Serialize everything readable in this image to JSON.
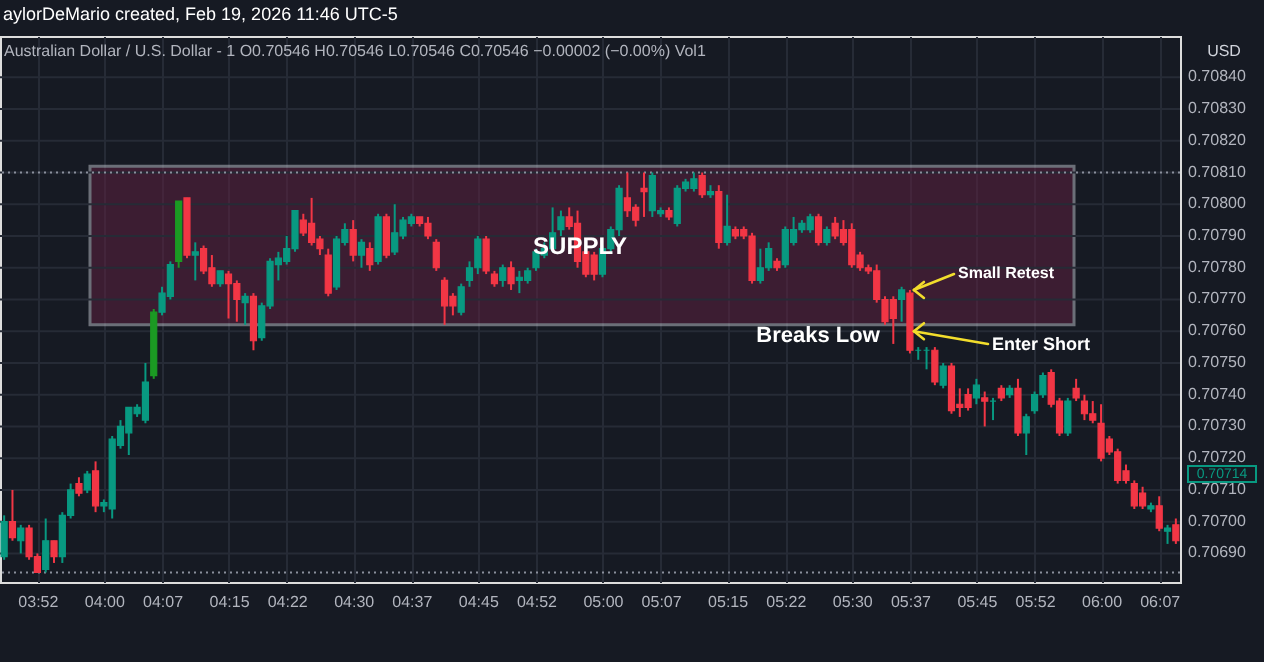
{
  "chart_data": {
    "type": "candlestick",
    "title": "aylorDeMario created, Feb 19, 2026 11:46 UTC-5",
    "subtitle": "Australian Dollar / U.S. Dollar - 1  O0.70546 H0.70546 L0.70546 C0.70546 −0.00002 (−0.00%) Vol1",
    "categories": [
      null,
      null,
      null,
      null,
      "03:52",
      null,
      null,
      null,
      null,
      null,
      null,
      null,
      "04:00",
      null,
      null,
      null,
      null,
      null,
      null,
      "04:07",
      null,
      null,
      null,
      null,
      null,
      null,
      null,
      "04:15",
      null,
      null,
      null,
      null,
      null,
      null,
      "04:22",
      null,
      null,
      null,
      null,
      null,
      null,
      null,
      "04:30",
      null,
      null,
      null,
      null,
      null,
      null,
      "04:37",
      null,
      null,
      null,
      null,
      null,
      null,
      null,
      "04:45",
      null,
      null,
      null,
      null,
      null,
      null,
      "04:52",
      null,
      null,
      null,
      null,
      null,
      null,
      null,
      "05:00",
      null,
      null,
      null,
      null,
      null,
      null,
      "05:07",
      null,
      null,
      null,
      null,
      null,
      null,
      null,
      "05:15",
      null,
      null,
      null,
      null,
      null,
      null,
      "05:22",
      null,
      null,
      null,
      null,
      null,
      null,
      null,
      "05:30",
      null,
      null,
      null,
      null,
      null,
      null,
      "05:37",
      null,
      null,
      null,
      null,
      null,
      null,
      null,
      "05:45",
      null,
      null,
      null,
      null,
      null,
      null,
      "05:52",
      null,
      null,
      null,
      null,
      null,
      null,
      null,
      "06:00",
      null,
      null,
      null,
      null,
      null,
      null,
      "06:07",
      null,
      null
    ],
    "ohlc": [
      [
        0.70689,
        0.70702,
        0.70688,
        0.707
      ],
      [
        0.707,
        0.7071,
        0.70694,
        0.70695
      ],
      [
        0.70694,
        0.70699,
        0.7069,
        0.70698
      ],
      [
        0.70698,
        0.70699,
        0.70688,
        0.70689
      ],
      [
        0.70689,
        0.7069,
        0.70684,
        0.70684
      ],
      [
        0.70685,
        0.70701,
        0.70684,
        0.70694
      ],
      [
        0.70694,
        0.70694,
        0.70687,
        0.70689
      ],
      [
        0.70689,
        0.70703,
        0.70687,
        0.70702
      ],
      [
        0.70702,
        0.70712,
        0.70701,
        0.7071
      ],
      [
        0.70712,
        0.70714,
        0.70708,
        0.70709
      ],
      [
        0.7071,
        0.70716,
        0.70709,
        0.70715
      ],
      [
        0.70716,
        0.70719,
        0.70703,
        0.70705
      ],
      [
        0.70705,
        0.70707,
        0.70703,
        0.70706
      ],
      [
        0.70704,
        0.70727,
        0.70701,
        0.70726
      ],
      [
        0.70724,
        0.70732,
        0.70723,
        0.7073
      ],
      [
        0.70728,
        0.70736,
        0.70721,
        0.70736
      ],
      [
        0.70734,
        0.70737,
        0.70733,
        0.70736
      ],
      [
        0.70732,
        0.7075,
        0.70731,
        0.70744
      ],
      [
        0.70746,
        0.70767,
        0.70745,
        0.70766
      ],
      [
        0.70766,
        0.70774,
        0.70765,
        0.70772
      ],
      [
        0.70771,
        0.70782,
        0.7077,
        0.70781
      ],
      [
        0.70782,
        0.70801,
        0.7078,
        0.70801
      ],
      [
        0.70802,
        0.70802,
        0.70783,
        0.70784
      ],
      [
        0.70784,
        0.70788,
        0.70776,
        0.70785
      ],
      [
        0.70786,
        0.70787,
        0.70778,
        0.70779
      ],
      [
        0.7078,
        0.70784,
        0.70774,
        0.70775
      ],
      [
        0.70775,
        0.70779,
        0.70774,
        0.70779
      ],
      [
        0.70778,
        0.70779,
        0.70764,
        0.70775
      ],
      [
        0.70775,
        0.70776,
        0.70763,
        0.7077
      ],
      [
        0.70769,
        0.70772,
        0.70762,
        0.70771
      ],
      [
        0.70771,
        0.70772,
        0.70754,
        0.70757
      ],
      [
        0.70758,
        0.70769,
        0.70757,
        0.70768
      ],
      [
        0.70768,
        0.70783,
        0.70767,
        0.70782
      ],
      [
        0.70781,
        0.70785,
        0.70776,
        0.70783
      ],
      [
        0.70782,
        0.7079,
        0.70781,
        0.70786
      ],
      [
        0.70786,
        0.70798,
        0.70785,
        0.70798
      ],
      [
        0.70795,
        0.70797,
        0.7079,
        0.70791
      ],
      [
        0.70794,
        0.70802,
        0.70787,
        0.70788
      ],
      [
        0.70789,
        0.7079,
        0.70784,
        0.70786
      ],
      [
        0.70784,
        0.70786,
        0.70771,
        0.70772
      ],
      [
        0.70774,
        0.7079,
        0.70773,
        0.70789
      ],
      [
        0.70788,
        0.70794,
        0.70787,
        0.70792
      ],
      [
        0.70792,
        0.70795,
        0.70782,
        0.70784
      ],
      [
        0.70784,
        0.70789,
        0.7078,
        0.70788
      ],
      [
        0.70786,
        0.70788,
        0.70779,
        0.70781
      ],
      [
        0.70782,
        0.70797,
        0.70781,
        0.70796
      ],
      [
        0.70796,
        0.70797,
        0.70783,
        0.70784
      ],
      [
        0.70785,
        0.708,
        0.70784,
        0.70791
      ],
      [
        0.7079,
        0.70796,
        0.70789,
        0.70795
      ],
      [
        0.70794,
        0.70797,
        0.70793,
        0.70796
      ],
      [
        0.70796,
        0.70796,
        0.70793,
        0.70794
      ],
      [
        0.70794,
        0.70796,
        0.70789,
        0.7079
      ],
      [
        0.70788,
        0.70789,
        0.70779,
        0.7078
      ],
      [
        0.70776,
        0.70777,
        0.70762,
        0.70768
      ],
      [
        0.70771,
        0.70772,
        0.70765,
        0.70768
      ],
      [
        0.70766,
        0.70775,
        0.70765,
        0.70774
      ],
      [
        0.70776,
        0.70782,
        0.70774,
        0.7078
      ],
      [
        0.7078,
        0.7079,
        0.70778,
        0.70789
      ],
      [
        0.70789,
        0.7079,
        0.70778,
        0.70779
      ],
      [
        0.70778,
        0.70779,
        0.70774,
        0.70775
      ],
      [
        0.70776,
        0.70781,
        0.70774,
        0.7078
      ],
      [
        0.7078,
        0.70782,
        0.70773,
        0.70775
      ],
      [
        0.70776,
        0.70779,
        0.70772,
        0.70777
      ],
      [
        0.70776,
        0.7078,
        0.70775,
        0.70779
      ],
      [
        0.7078,
        0.70786,
        0.70779,
        0.70785
      ],
      [
        0.70784,
        0.70788,
        0.70783,
        0.70786
      ],
      [
        0.70786,
        0.70799,
        0.70785,
        0.70791
      ],
      [
        0.70792,
        0.70798,
        0.7079,
        0.70796
      ],
      [
        0.70796,
        0.70799,
        0.70792,
        0.70793
      ],
      [
        0.70794,
        0.70798,
        0.7078,
        0.70782
      ],
      [
        0.70785,
        0.70786,
        0.70777,
        0.70778
      ],
      [
        0.70784,
        0.70785,
        0.70776,
        0.70778
      ],
      [
        0.70778,
        0.70787,
        0.70777,
        0.70786
      ],
      [
        0.70786,
        0.70793,
        0.70785,
        0.70792
      ],
      [
        0.70792,
        0.70806,
        0.7079,
        0.70805
      ],
      [
        0.70802,
        0.7081,
        0.70796,
        0.70798
      ],
      [
        0.70799,
        0.708,
        0.70793,
        0.70795
      ],
      [
        0.70805,
        0.7081,
        0.70796,
        0.70804
      ],
      [
        0.70798,
        0.7081,
        0.70796,
        0.70809
      ],
      [
        0.70797,
        0.70799,
        0.70796,
        0.70798
      ],
      [
        0.70798,
        0.70799,
        0.70795,
        0.70796
      ],
      [
        0.70794,
        0.70806,
        0.70793,
        0.70805
      ],
      [
        0.70805,
        0.70808,
        0.70804,
        0.70807
      ],
      [
        0.70805,
        0.7081,
        0.70804,
        0.70808
      ],
      [
        0.70809,
        0.7081,
        0.70802,
        0.70803
      ],
      [
        0.70803,
        0.70806,
        0.70802,
        0.70804
      ],
      [
        0.70804,
        0.70806,
        0.70786,
        0.70788
      ],
      [
        0.70788,
        0.70803,
        0.70787,
        0.70793
      ],
      [
        0.70792,
        0.70793,
        0.70789,
        0.7079
      ],
      [
        0.70792,
        0.70793,
        0.70789,
        0.7079
      ],
      [
        0.7079,
        0.70791,
        0.70775,
        0.70776
      ],
      [
        0.70776,
        0.70786,
        0.70775,
        0.7078
      ],
      [
        0.7078,
        0.70788,
        0.70779,
        0.70786
      ],
      [
        0.70782,
        0.70783,
        0.70779,
        0.7078
      ],
      [
        0.70781,
        0.70793,
        0.7078,
        0.70792
      ],
      [
        0.70788,
        0.70796,
        0.70787,
        0.70792
      ],
      [
        0.70792,
        0.70795,
        0.70791,
        0.70794
      ],
      [
        0.70792,
        0.70797,
        0.70791,
        0.70796
      ],
      [
        0.70796,
        0.70797,
        0.70787,
        0.70788
      ],
      [
        0.70788,
        0.70793,
        0.70787,
        0.70792
      ],
      [
        0.70794,
        0.70796,
        0.70789,
        0.7079
      ],
      [
        0.70792,
        0.70795,
        0.70787,
        0.70788
      ],
      [
        0.70792,
        0.70794,
        0.7078,
        0.70781
      ],
      [
        0.70784,
        0.70785,
        0.70779,
        0.7078
      ],
      [
        0.7078,
        0.70781,
        0.70778,
        0.70779
      ],
      [
        0.70779,
        0.70781,
        0.70769,
        0.7077
      ],
      [
        0.7077,
        0.70771,
        0.70762,
        0.70763
      ],
      [
        0.7077,
        0.70771,
        0.70756,
        0.70764
      ],
      [
        0.7077,
        0.70774,
        0.70763,
        0.70773
      ],
      [
        0.70772,
        0.70773,
        0.70753,
        0.70754
      ],
      [
        0.70754,
        0.70755,
        0.70751,
        0.70754
      ],
      [
        0.70754,
        0.70755,
        0.70748,
        0.70754
      ],
      [
        0.70754,
        0.70755,
        0.70743,
        0.70744
      ],
      [
        0.70743,
        0.7075,
        0.70742,
        0.70749
      ],
      [
        0.70749,
        0.7075,
        0.70734,
        0.70735
      ],
      [
        0.70737,
        0.70742,
        0.70733,
        0.70736
      ],
      [
        0.7074,
        0.70742,
        0.70735,
        0.70736
      ],
      [
        0.70739,
        0.70745,
        0.70737,
        0.70743
      ],
      [
        0.70739,
        0.70741,
        0.7073,
        0.70738
      ],
      [
        0.70738,
        0.70739,
        0.70732,
        0.70738
      ],
      [
        0.70742,
        0.70743,
        0.70738,
        0.70739
      ],
      [
        0.7074,
        0.70743,
        0.70739,
        0.70742
      ],
      [
        0.70742,
        0.70745,
        0.70727,
        0.70728
      ],
      [
        0.70728,
        0.70734,
        0.70721,
        0.70733
      ],
      [
        0.70735,
        0.70741,
        0.70734,
        0.7074
      ],
      [
        0.7074,
        0.70747,
        0.70739,
        0.70746
      ],
      [
        0.70747,
        0.70748,
        0.70736,
        0.70737
      ],
      [
        0.70738,
        0.70739,
        0.70727,
        0.70728
      ],
      [
        0.70728,
        0.70739,
        0.70727,
        0.70738
      ],
      [
        0.70742,
        0.70745,
        0.70738,
        0.70739
      ],
      [
        0.70738,
        0.7074,
        0.70732,
        0.70734
      ],
      [
        0.70734,
        0.70738,
        0.70731,
        0.70732
      ],
      [
        0.70731,
        0.70737,
        0.70719,
        0.7072
      ],
      [
        0.70726,
        0.70727,
        0.70721,
        0.70722
      ],
      [
        0.70722,
        0.70723,
        0.70712,
        0.70713
      ],
      [
        0.70716,
        0.70718,
        0.70712,
        0.70713
      ],
      [
        0.70712,
        0.70713,
        0.70704,
        0.70705
      ],
      [
        0.70709,
        0.70711,
        0.70704,
        0.70705
      ],
      [
        0.70704,
        0.70706,
        0.70703,
        0.70705
      ],
      [
        0.70705,
        0.70708,
        0.70697,
        0.70698
      ],
      [
        0.70697,
        0.70699,
        0.70693,
        0.70698
      ],
      [
        0.70699,
        0.70701,
        0.70693,
        0.70694
      ]
    ],
    "colors": [
      "#089981",
      "#f23645",
      "#089981",
      "#f23645",
      "#f23645",
      "#089981",
      "#f23645",
      "#089981",
      "#089981",
      "#f23645",
      "#089981",
      "#f23645",
      "#089981",
      "#089981",
      "#089981",
      "#089981",
      "#089981",
      "#089981",
      "#1b9a23",
      "#089981",
      "#089981",
      "#1b9a23",
      "#f23645",
      "#089981",
      "#f23645",
      "#f23645",
      "#089981",
      "#f23645",
      "#f23645",
      "#089981",
      "#f23645",
      "#089981",
      "#089981",
      "#089981",
      "#089981",
      "#089981",
      "#f23645",
      "#f23645",
      "#f23645",
      "#f23645",
      "#089981",
      "#089981",
      "#f23645",
      "#089981",
      "#f23645",
      "#089981",
      "#f23645",
      "#089981",
      "#089981",
      "#089981",
      "#f23645",
      "#f23645",
      "#f23645",
      "#f23645",
      "#f23645",
      "#089981",
      "#089981",
      "#089981",
      "#f23645",
      "#f23645",
      "#089981",
      "#f23645",
      "#089981",
      "#089981",
      "#089981",
      "#089981",
      "#089981",
      "#089981",
      "#f23645",
      "#f23645",
      "#f23645",
      "#f23645",
      "#089981",
      "#089981",
      "#089981",
      "#f23645",
      "#f23645",
      "#f23645",
      "#089981",
      "#089981",
      "#f23645",
      "#089981",
      "#089981",
      "#089981",
      "#f23645",
      "#089981",
      "#f23645",
      "#089981",
      "#f23645",
      "#f23645",
      "#f23645",
      "#089981",
      "#089981",
      "#f23645",
      "#089981",
      "#089981",
      "#089981",
      "#089981",
      "#f23645",
      "#089981",
      "#f23645",
      "#f23645",
      "#f23645",
      "#f23645",
      "#f23645",
      "#f23645",
      "#f23645",
      "#f23645",
      "#089981",
      "#f23645",
      "#089981",
      "#089981",
      "#f23645",
      "#089981",
      "#f23645",
      "#f23645",
      "#f23645",
      "#089981",
      "#f23645",
      "#089981",
      "#f23645",
      "#089981",
      "#f23645",
      "#089981",
      "#089981",
      "#089981",
      "#f23645",
      "#f23645",
      "#089981",
      "#f23645",
      "#f23645",
      "#f23645",
      "#f23645",
      "#f23645",
      "#f23645",
      "#f23645",
      "#f23645",
      "#f23645",
      "#089981",
      "#f23645",
      "#089981",
      "#f23645"
    ],
    "ylim": [
      0.70681,
      0.70853
    ],
    "yticks": [
      {
        "value": 0.7069,
        "label": "0.70690"
      },
      {
        "value": 0.707,
        "label": "0.70700"
      },
      {
        "value": 0.7071,
        "label": "0.70710"
      },
      {
        "value": 0.7072,
        "label": "0.70720"
      },
      {
        "value": 0.7073,
        "label": "0.70730"
      },
      {
        "value": 0.7074,
        "label": "0.70740"
      },
      {
        "value": 0.7075,
        "label": "0.70750"
      },
      {
        "value": 0.7076,
        "label": "0.70760"
      },
      {
        "value": 0.7077,
        "label": "0.70770"
      },
      {
        "value": 0.7078,
        "label": "0.70780"
      },
      {
        "value": 0.7079,
        "label": "0.70790"
      },
      {
        "value": 0.708,
        "label": "0.70800"
      },
      {
        "value": 0.7081,
        "label": "0.70810"
      },
      {
        "value": 0.7082,
        "label": "0.70820"
      },
      {
        "value": 0.7083,
        "label": "0.70830"
      },
      {
        "value": 0.7084,
        "label": "0.70840"
      }
    ],
    "grid": true,
    "bands": [
      {
        "axis": "y",
        "from": 0.70762,
        "to": 0.70812,
        "label": "SUPPLY",
        "color": "#5c2140"
      }
    ],
    "ref_lines": [
      {
        "axis": "y",
        "value": 0.7081,
        "color": "#8a8f9c",
        "line_style": "dotted"
      },
      {
        "axis": "y",
        "value": 0.70684,
        "color": "#8a8f9c",
        "line_style": "dotted"
      }
    ],
    "annotations": [
      "Breaks Low",
      {
        "text": "Small Retest",
        "x": "05:37",
        "y": 0.70773
      },
      {
        "text": "Enter Short",
        "x": "05:37",
        "y": 0.7076
      },
      "USD",
      "0.70714"
    ]
  }
}
